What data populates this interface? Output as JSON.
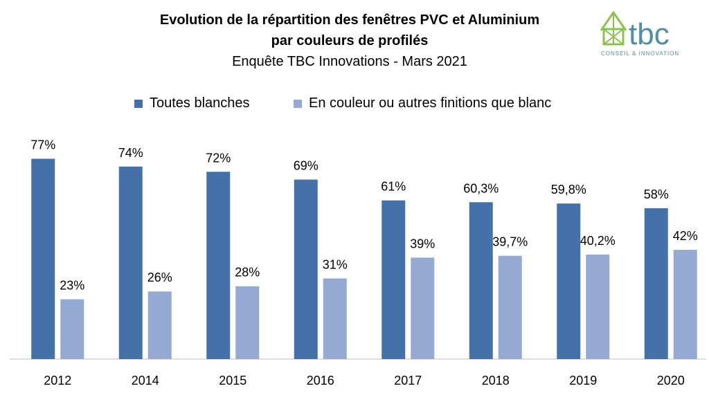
{
  "header": {
    "title_line1": "Evolution de la répartition des fenêtres PVC et Aluminium",
    "title_line2": "par  couleurs de profilés",
    "subtitle": "Enquête TBC Innovations - Mars 2021"
  },
  "logo": {
    "text": "tbc",
    "tagline": "CONSEIL & INNOVATION",
    "icon": "house-icon",
    "color": "#4d8fa6",
    "accent": "#8bc34a"
  },
  "colors": {
    "series1": "#4472a8",
    "series2": "#95aad3",
    "axis": "#bfbfbf"
  },
  "chart_data": {
    "type": "bar",
    "categories": [
      "2012",
      "2014",
      "2015",
      "2016",
      "2017",
      "2018",
      "2019",
      "2020"
    ],
    "series": [
      {
        "name": "Toutes blanches",
        "values": [
          77,
          74,
          72,
          69,
          61,
          60.3,
          59.8,
          58
        ],
        "labels": [
          "77%",
          "74%",
          "72%",
          "69%",
          "61%",
          "60,3%",
          "59,8%",
          "58%"
        ]
      },
      {
        "name": "En couleur ou autres finitions que blanc",
        "values": [
          23,
          26,
          28,
          31,
          39,
          39.7,
          40.2,
          42
        ],
        "labels": [
          "23%",
          "26%",
          "28%",
          "31%",
          "39%",
          "39,7%",
          "40,2%",
          "42%"
        ]
      }
    ],
    "ylim": [
      0,
      100
    ],
    "grid": false,
    "legend_position": "top"
  }
}
